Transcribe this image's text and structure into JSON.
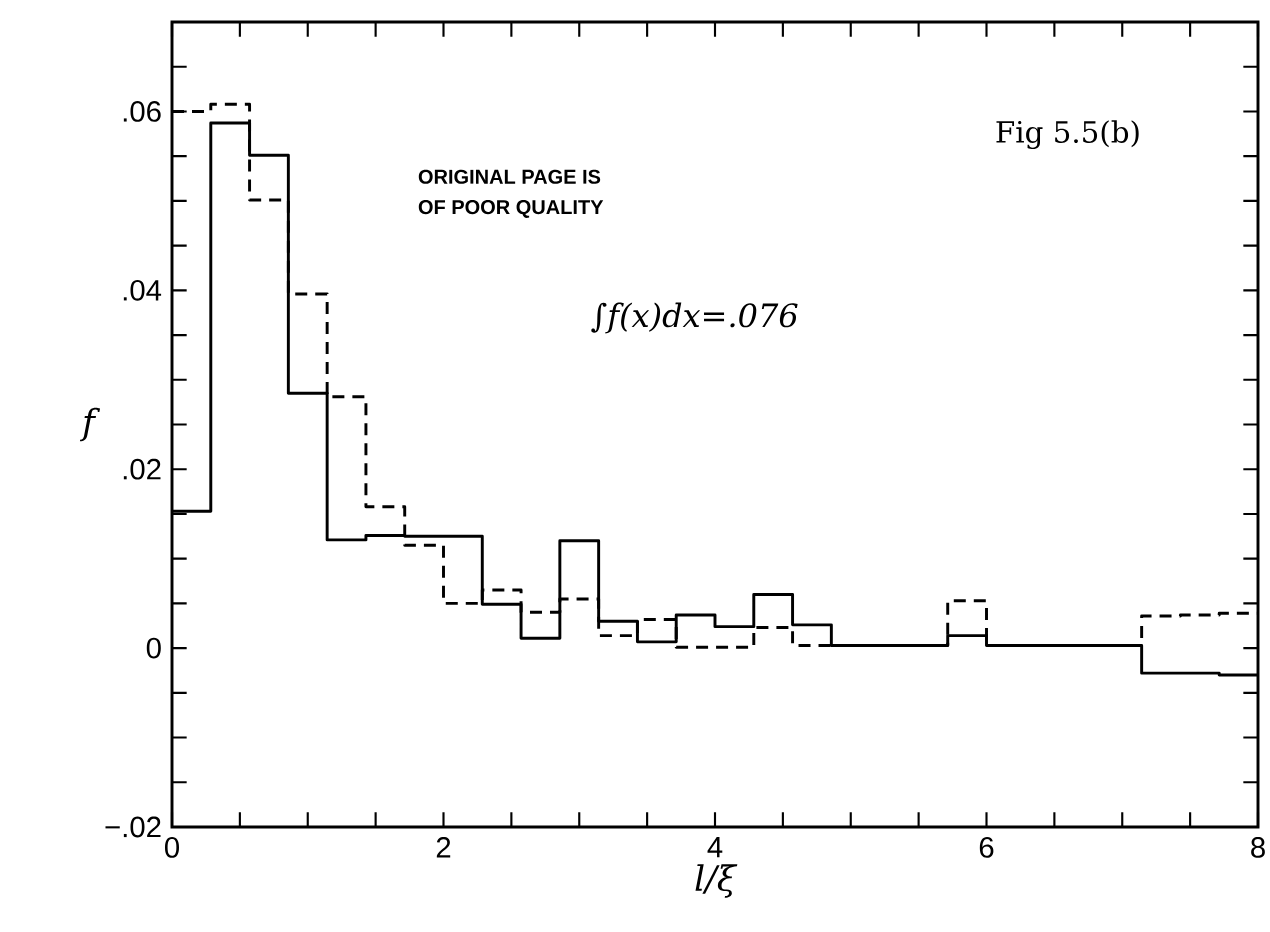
{
  "chart_data": {
    "type": "histogram",
    "xlabel": "l/ξ",
    "ylabel": "f",
    "annotations": [
      "Fig 5.5(b)",
      "ORIGINAL PAGE IS",
      "OF POOR QUALITY",
      "∫f(x)dx=.076"
    ],
    "bins": [
      0,
      0.2857,
      0.5714,
      0.8571,
      1.1429,
      1.4286,
      1.7143,
      2,
      2.2857,
      2.5714,
      2.8571,
      3.1429,
      3.4286,
      3.7143,
      4,
      4.2857,
      4.5714,
      4.8571,
      5.1429,
      5.4286,
      5.7143,
      6,
      6.2857,
      6.5714,
      6.8571,
      7.1429,
      7.4286,
      7.7143,
      8
    ],
    "series": [
      {
        "color": "#000000",
        "line_style": "solid",
        "values": [
          0.0153,
          0.0587,
          0.0551,
          0.0285,
          0.0121,
          0.0126,
          0.0125,
          0.0125,
          0.0049,
          0.0011,
          0.012,
          0.003,
          0.0007,
          0.0037,
          0.0024,
          0.006,
          0.0026,
          0.0003,
          0.0003,
          0.0003,
          0.0014,
          0.0003,
          0.0003,
          0.0003,
          0.0003,
          -0.0028,
          -0.0028,
          -0.003
        ]
      },
      {
        "color": "#000000",
        "line_style": "dashed",
        "values": [
          0.06,
          0.0608,
          0.0501,
          0.0396,
          0.0281,
          0.0158,
          0.0115,
          0.005,
          0.0065,
          0.004,
          0.0055,
          0.0014,
          0.0032,
          0.0001,
          0.0001,
          0.0023,
          0.0003,
          0.0003,
          0.0003,
          0.0003,
          0.0053,
          0.0003,
          0.0003,
          0.0003,
          0.0003,
          0.0036,
          0.0037,
          0.0039
        ]
      }
    ],
    "xlim": [
      0,
      8
    ],
    "ylim": [
      -0.02,
      0.07
    ],
    "xticks": [
      0,
      {
        "value": 0.5,
        "label": null
      },
      {
        "value": 1,
        "label": null
      },
      {
        "value": 1.5,
        "label": null
      },
      2,
      {
        "value": 2.5,
        "label": null
      },
      {
        "value": 3,
        "label": null
      },
      {
        "value": 3.5,
        "label": null
      },
      4,
      {
        "value": 4.5,
        "label": null
      },
      {
        "value": 5,
        "label": null
      },
      {
        "value": 5.5,
        "label": null
      },
      6,
      {
        "value": 6.5,
        "label": null
      },
      {
        "value": 7,
        "label": null
      },
      {
        "value": 7.5,
        "label": null
      },
      8
    ],
    "yticks": [
      {
        "value": -0.02,
        "label": "−.02"
      },
      {
        "value": -0.015,
        "label": null
      },
      {
        "value": -0.01,
        "label": null
      },
      {
        "value": -0.005,
        "label": null
      },
      0,
      {
        "value": 0.005,
        "label": null
      },
      {
        "value": 0.01,
        "label": null
      },
      {
        "value": 0.015,
        "label": null
      },
      {
        "value": 0.02,
        "label": ".02"
      },
      {
        "value": 0.025,
        "label": null
      },
      {
        "value": 0.03,
        "label": null
      },
      {
        "value": 0.035,
        "label": null
      },
      {
        "value": 0.04,
        "label": ".04"
      },
      {
        "value": 0.045,
        "label": null
      },
      {
        "value": 0.05,
        "label": null
      },
      {
        "value": 0.055,
        "label": null
      },
      {
        "value": 0.06,
        "label": ".06"
      },
      {
        "value": 0.065,
        "label": null
      }
    ]
  }
}
